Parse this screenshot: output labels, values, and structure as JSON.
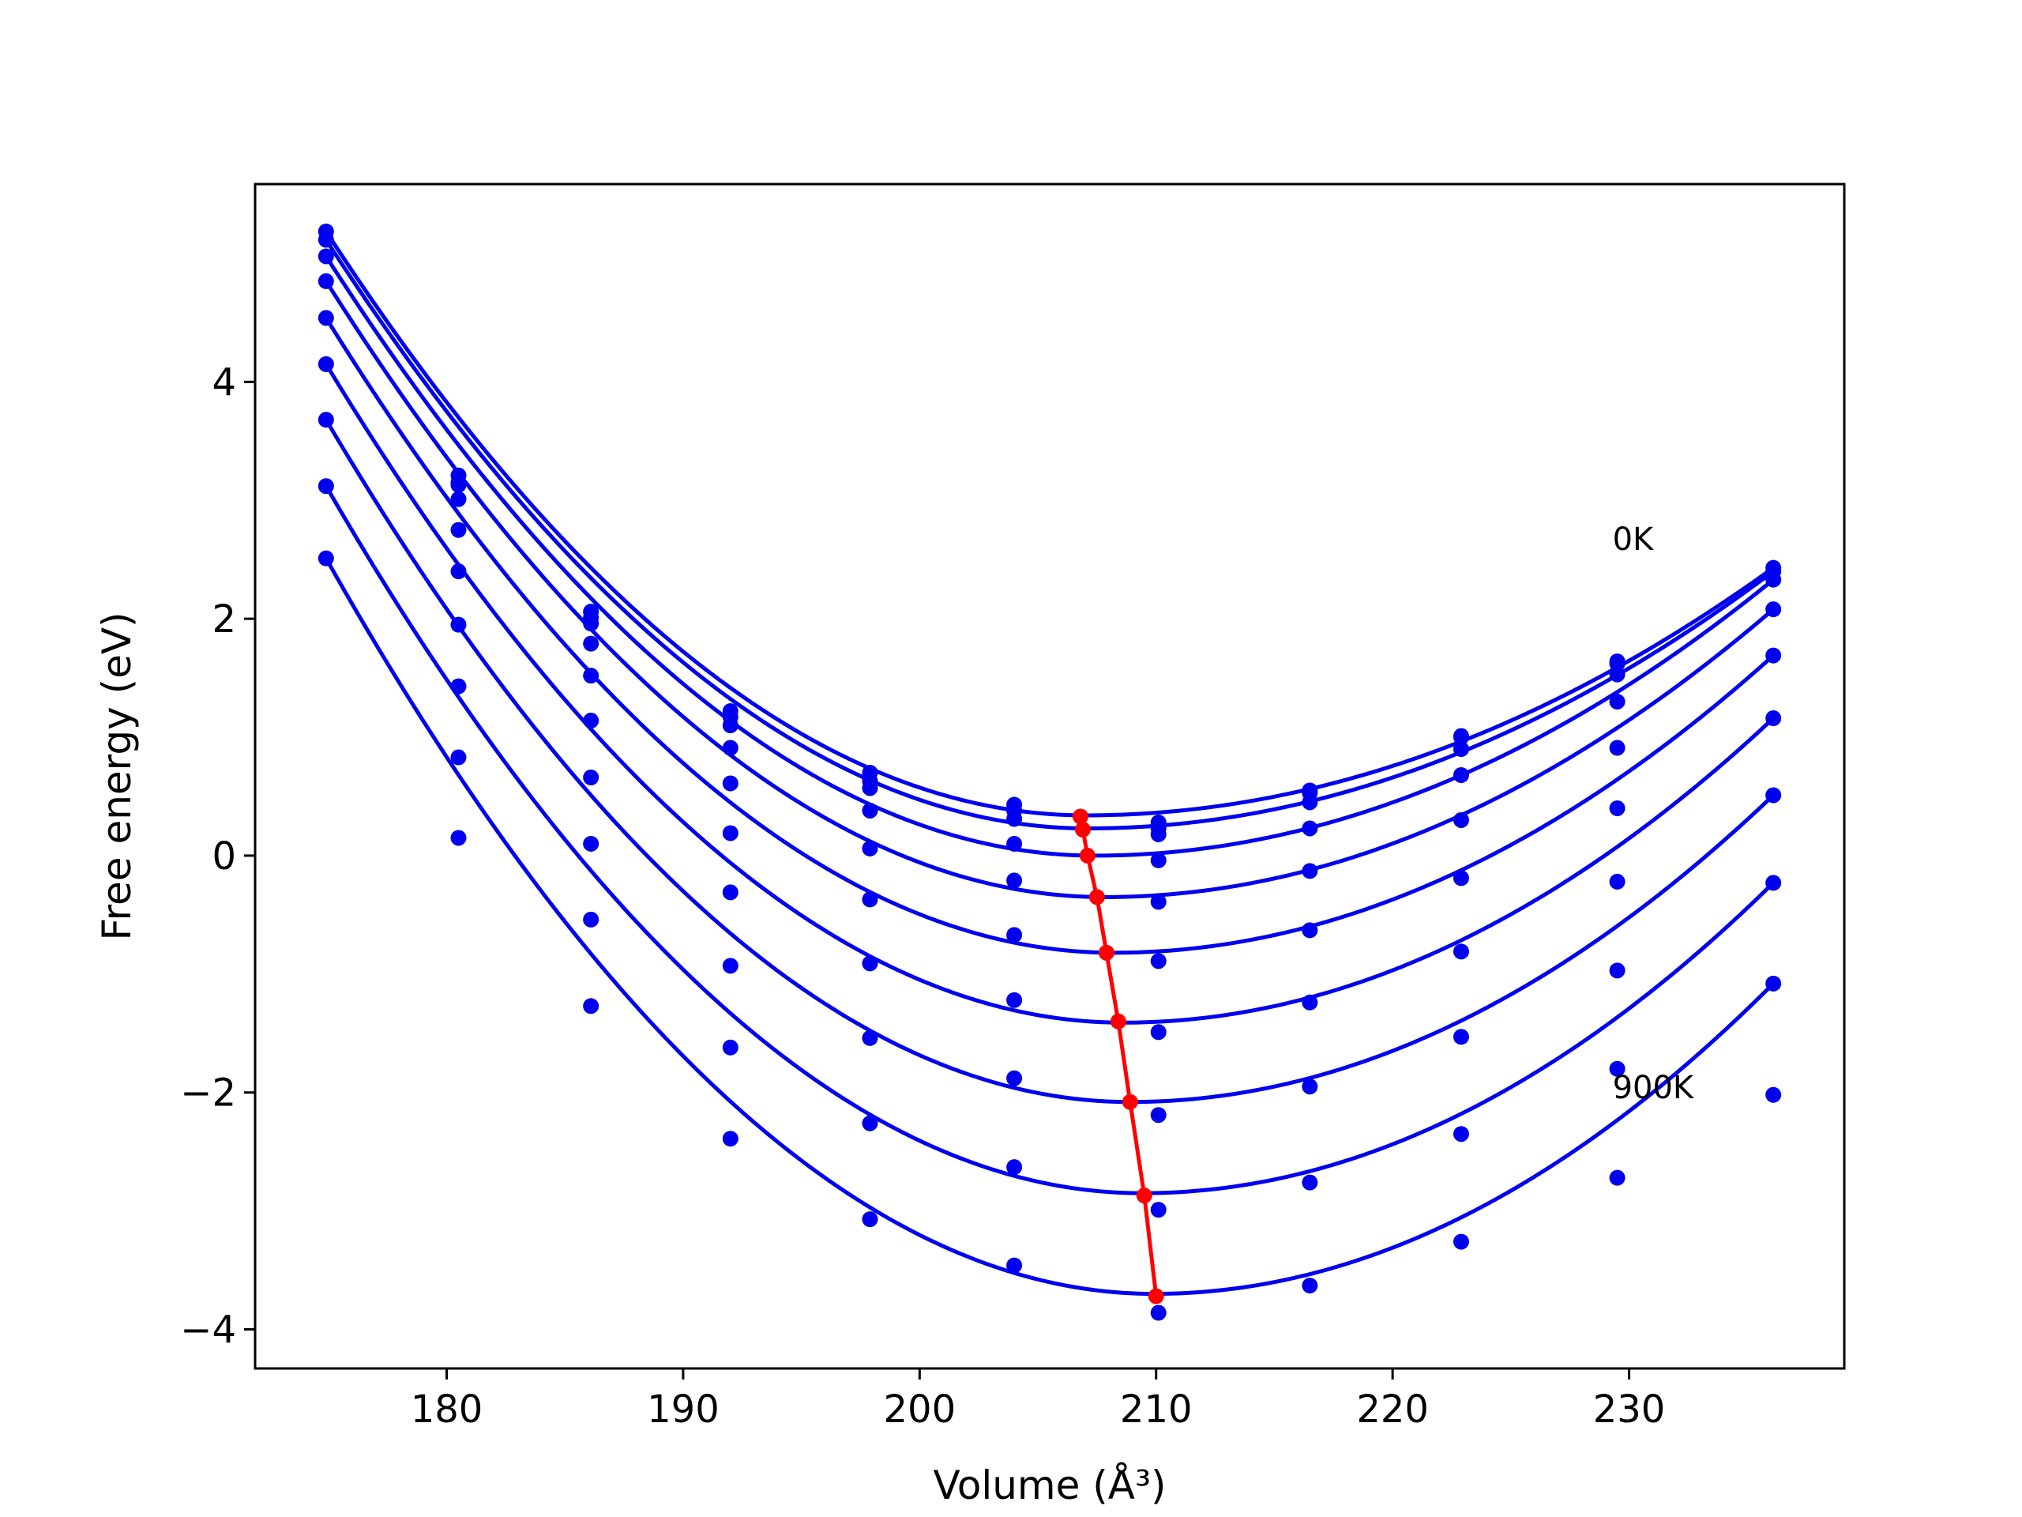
{
  "chart_data": {
    "type": "scatter",
    "xlabel": "Volume (Å³)",
    "ylabel": "Free energy (eV)",
    "xlim": [
      171.9,
      239.1
    ],
    "ylim": [
      -4.33,
      5.67
    ],
    "xticks": [
      180,
      190,
      200,
      210,
      220,
      230
    ],
    "yticks": [
      -4,
      -2,
      0,
      2,
      4
    ],
    "ytick_labels": [
      "−4",
      "−2",
      "0",
      "2",
      "4"
    ],
    "grid": false,
    "volumes": [
      174.9,
      180.5,
      186.1,
      192.0,
      197.9,
      204.0,
      210.1,
      216.5,
      222.9,
      229.5,
      236.1
    ],
    "series": [
      {
        "label": "0K",
        "values": [
          5.27,
          3.21,
          2.06,
          1.22,
          0.7,
          0.43,
          0.28,
          0.55,
          1.01,
          1.64,
          2.43
        ]
      },
      {
        "values": [
          5.2,
          3.15,
          2.01,
          1.17,
          0.63,
          0.38,
          0.23,
          0.53,
          1.0,
          1.62,
          2.4
        ]
      },
      {
        "values": [
          5.06,
          3.13,
          1.96,
          1.1,
          0.57,
          0.31,
          0.18,
          0.45,
          0.9,
          1.53,
          2.33
        ]
      },
      {
        "values": [
          4.85,
          3.01,
          1.79,
          0.91,
          0.38,
          0.1,
          -0.04,
          0.23,
          0.68,
          1.3,
          2.08
        ]
      },
      {
        "values": [
          4.54,
          2.75,
          1.52,
          0.61,
          0.06,
          -0.21,
          -0.39,
          -0.13,
          0.3,
          0.91,
          1.69
        ]
      },
      {
        "values": [
          4.15,
          2.4,
          1.14,
          0.19,
          -0.37,
          -0.67,
          -0.89,
          -0.63,
          -0.19,
          0.4,
          1.16
        ]
      },
      {
        "values": [
          3.68,
          1.95,
          0.66,
          -0.31,
          -0.91,
          -1.22,
          -1.49,
          -1.24,
          -0.81,
          -0.22,
          0.51
        ]
      },
      {
        "values": [
          3.12,
          1.43,
          0.1,
          -0.93,
          -1.54,
          -1.88,
          -2.19,
          -1.95,
          -1.53,
          -0.97,
          -0.23
        ]
      },
      {
        "values": [
          2.51,
          0.83,
          -0.54,
          -1.62,
          -2.26,
          -2.63,
          -2.99,
          -2.76,
          -2.35,
          -1.8,
          -1.08
        ]
      },
      {
        "label": "900K",
        "values": [
          null,
          0.15,
          -1.27,
          -2.39,
          -3.07,
          -3.46,
          -3.86,
          -3.63,
          -3.26,
          -2.72,
          -2.02
        ]
      }
    ],
    "fit_curves": [
      {
        "minimum": [
          207.0,
          0.34
        ]
      },
      {
        "minimum": [
          207.1,
          0.23
        ]
      },
      {
        "minimum": [
          207.4,
          0.0
        ]
      },
      {
        "minimum": [
          207.8,
          -0.35
        ]
      },
      {
        "minimum": [
          208.2,
          -0.82
        ]
      },
      {
        "minimum": [
          208.6,
          -1.41
        ]
      },
      {
        "minimum": [
          208.9,
          -2.08
        ]
      },
      {
        "minimum": [
          209.4,
          -2.85
        ]
      },
      {
        "minimum": [
          209.9,
          -3.7
        ]
      }
    ],
    "minima_line": {
      "color": "#ff0000",
      "points": [
        [
          206.8,
          0.33
        ],
        [
          206.9,
          0.22
        ],
        [
          207.1,
          0.0
        ],
        [
          207.5,
          -0.35
        ],
        [
          207.9,
          -0.82
        ],
        [
          208.4,
          -1.4
        ],
        [
          208.9,
          -2.08
        ],
        [
          209.5,
          -2.87
        ],
        [
          210.0,
          -3.72
        ]
      ]
    },
    "series_color": "#0000ee",
    "annotations": [
      {
        "text": "0K",
        "x": 229.3,
        "y": 2.58
      },
      {
        "text": "900K",
        "x": 229.3,
        "y": -2.05
      }
    ]
  }
}
